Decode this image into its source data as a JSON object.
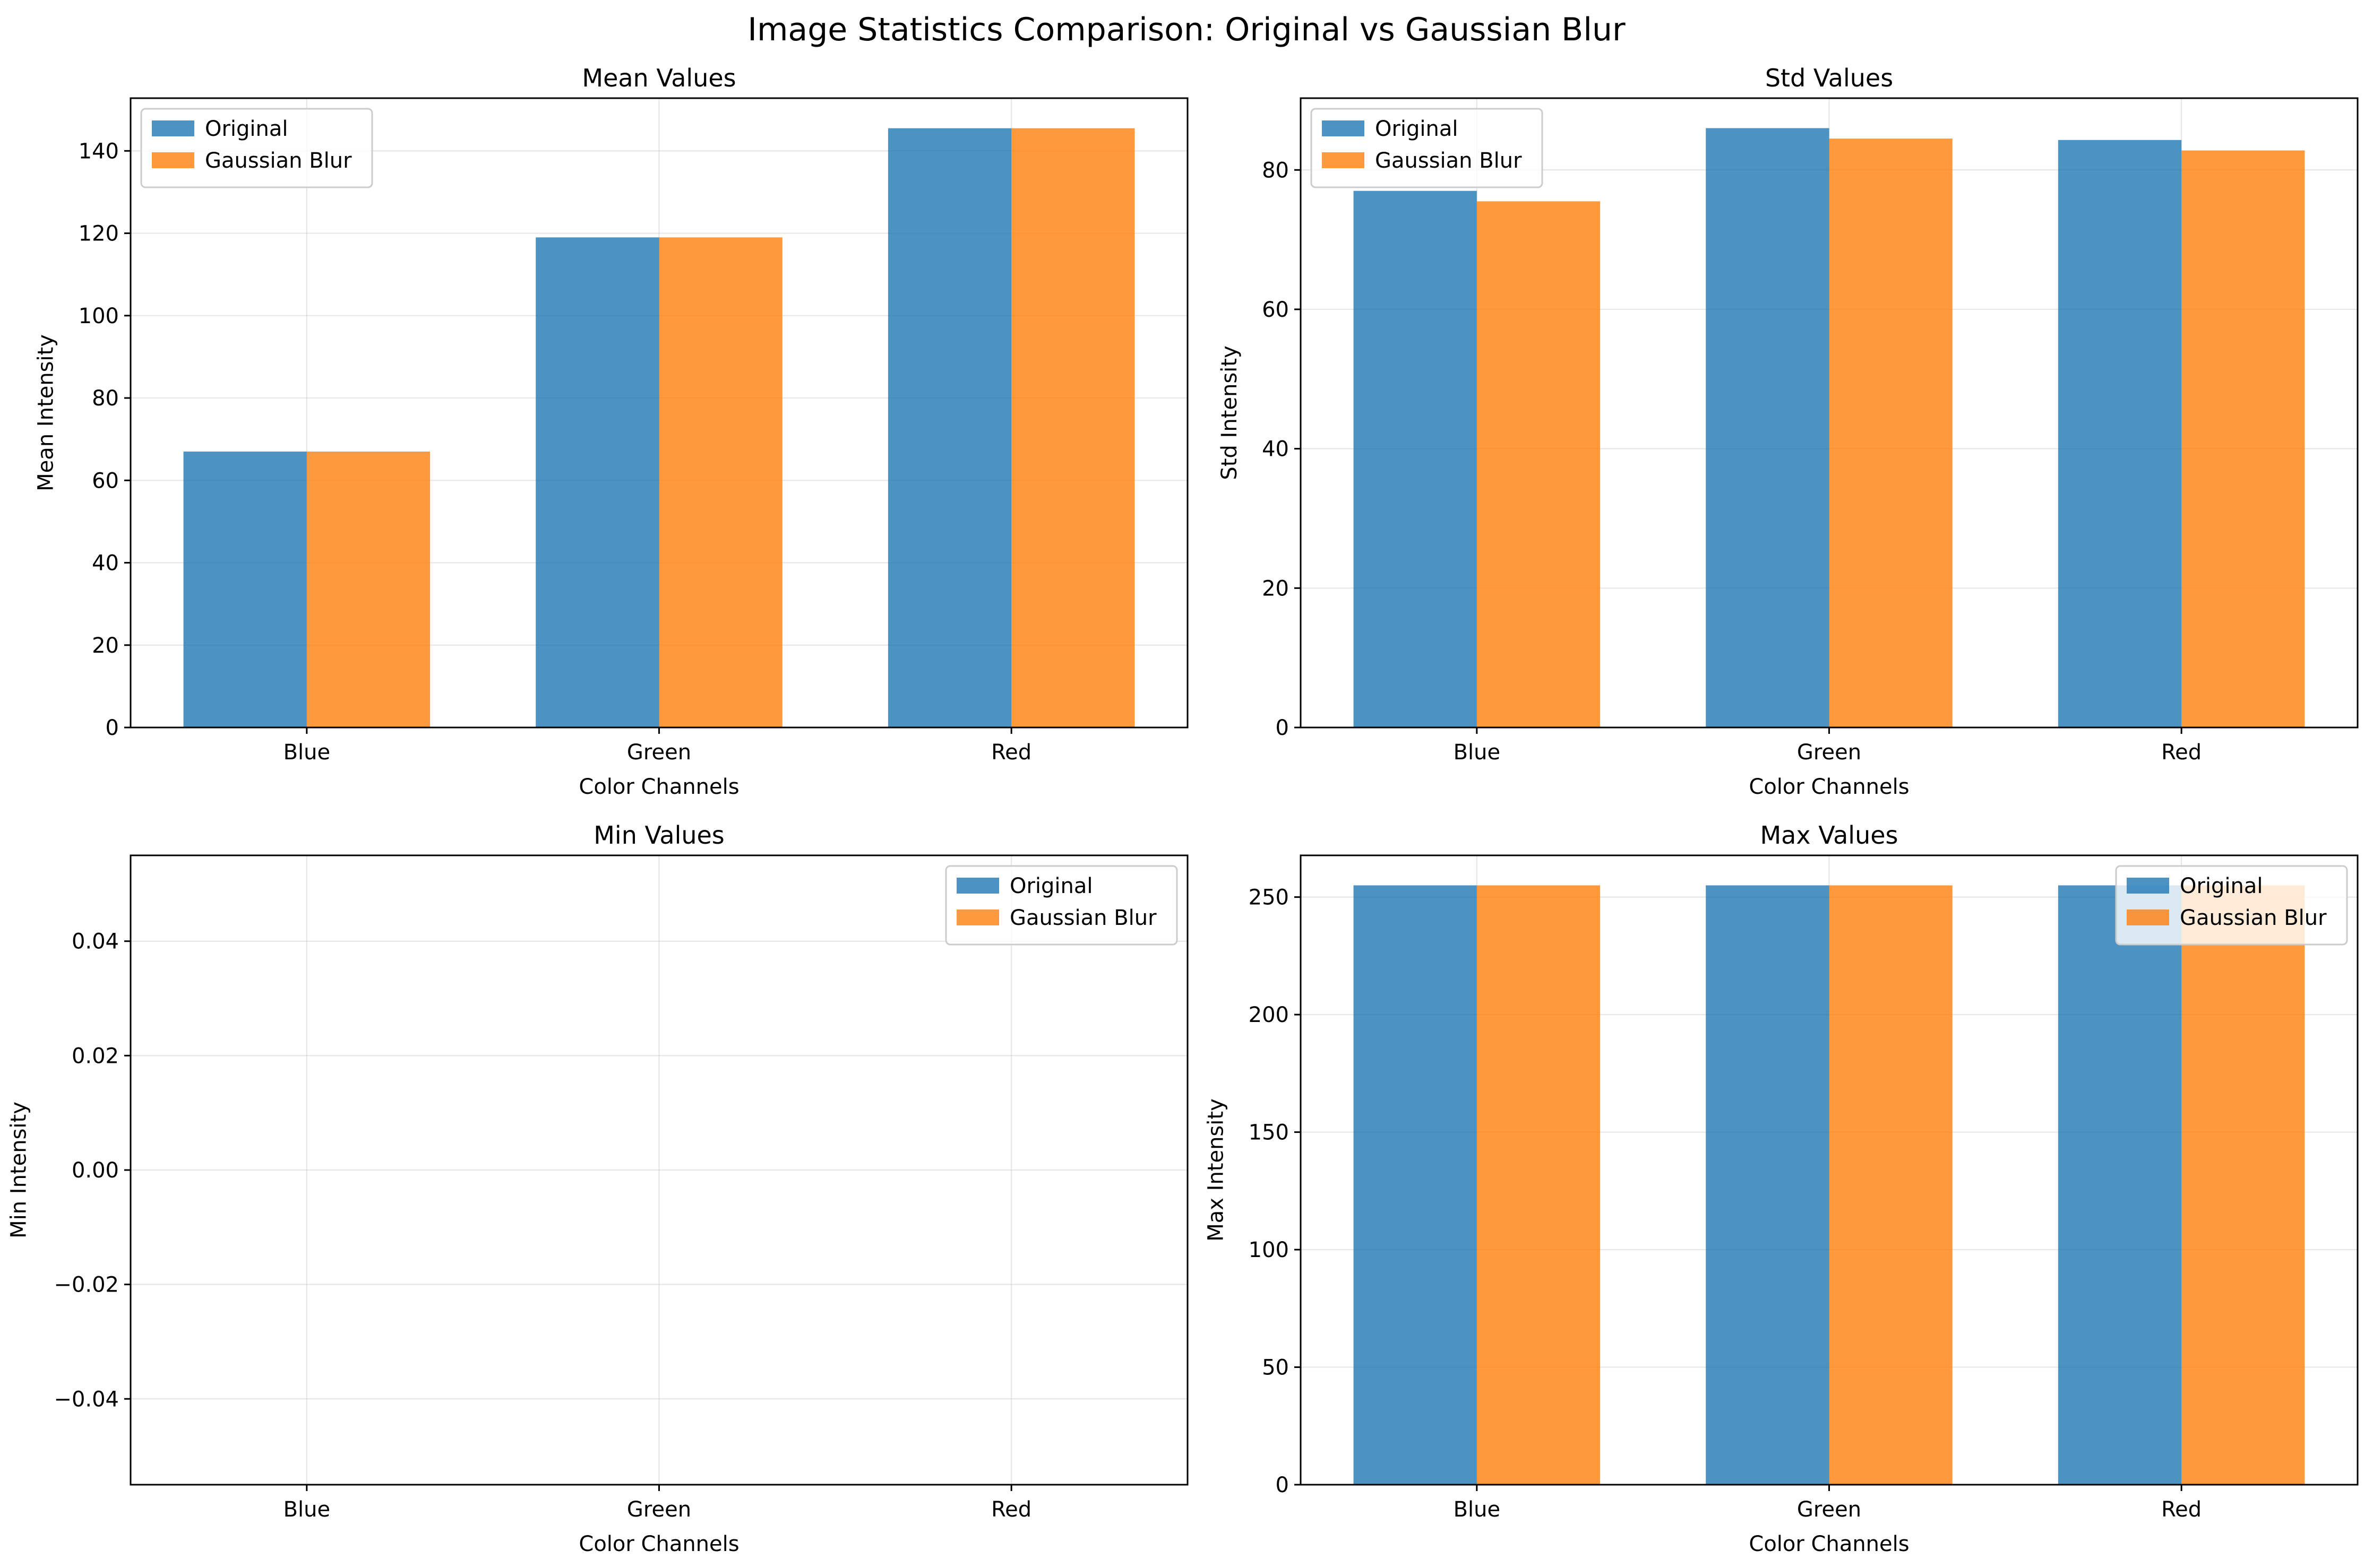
{
  "figure_title": "Image Statistics Comparison: Original vs Gaussian Blur",
  "colors": {
    "original": "#1f77b4",
    "gaussian_blur": "#ff7f0e",
    "bar_alpha": 0.8
  },
  "chart_data": [
    {
      "type": "bar",
      "title": "Mean Values",
      "xlabel": "Color Channels",
      "ylabel": "Mean Intensity",
      "categories": [
        "Blue",
        "Green",
        "Red"
      ],
      "series": [
        {
          "name": "Original",
          "values": [
            67,
            119,
            145.5
          ]
        },
        {
          "name": "Gaussian Blur",
          "values": [
            67,
            119,
            145.5
          ]
        }
      ],
      "ylim": [
        0,
        152.8
      ],
      "yticks": [
        0,
        20,
        40,
        60,
        80,
        100,
        120,
        140
      ],
      "ytick_labels": [
        "0",
        "20",
        "40",
        "60",
        "80",
        "100",
        "120",
        "140"
      ],
      "grid": true,
      "legend": "upper-left"
    },
    {
      "type": "bar",
      "title": "Std Values",
      "xlabel": "Color Channels",
      "ylabel": "Std Intensity",
      "categories": [
        "Blue",
        "Green",
        "Red"
      ],
      "series": [
        {
          "name": "Original",
          "values": [
            77,
            86,
            84.3
          ]
        },
        {
          "name": "Gaussian Blur",
          "values": [
            75.5,
            84.5,
            82.8
          ]
        }
      ],
      "ylim": [
        0,
        90.3
      ],
      "yticks": [
        0,
        20,
        40,
        60,
        80
      ],
      "ytick_labels": [
        "0",
        "20",
        "40",
        "60",
        "80"
      ],
      "grid": true,
      "legend": "upper-left"
    },
    {
      "type": "bar",
      "title": "Min Values",
      "xlabel": "Color Channels",
      "ylabel": "Min Intensity",
      "categories": [
        "Blue",
        "Green",
        "Red"
      ],
      "series": [
        {
          "name": "Original",
          "values": [
            0,
            0,
            0
          ]
        },
        {
          "name": "Gaussian Blur",
          "values": [
            0,
            0,
            0
          ]
        }
      ],
      "ylim": [
        -0.055,
        0.055
      ],
      "yticks": [
        -0.04,
        -0.02,
        0,
        0.02,
        0.04
      ],
      "ytick_labels": [
        "−0.04",
        "−0.02",
        "0.00",
        "0.02",
        "0.04"
      ],
      "grid": true,
      "legend": "upper-right"
    },
    {
      "type": "bar",
      "title": "Max Values",
      "xlabel": "Color Channels",
      "ylabel": "Max Intensity",
      "categories": [
        "Blue",
        "Green",
        "Red"
      ],
      "series": [
        {
          "name": "Original",
          "values": [
            255,
            255,
            255
          ]
        },
        {
          "name": "Gaussian Blur",
          "values": [
            255,
            255,
            255
          ]
        }
      ],
      "ylim": [
        0,
        267.75
      ],
      "yticks": [
        0,
        50,
        100,
        150,
        200,
        250
      ],
      "ytick_labels": [
        "0",
        "50",
        "100",
        "150",
        "200",
        "250"
      ],
      "grid": true,
      "legend": "upper-right"
    }
  ]
}
